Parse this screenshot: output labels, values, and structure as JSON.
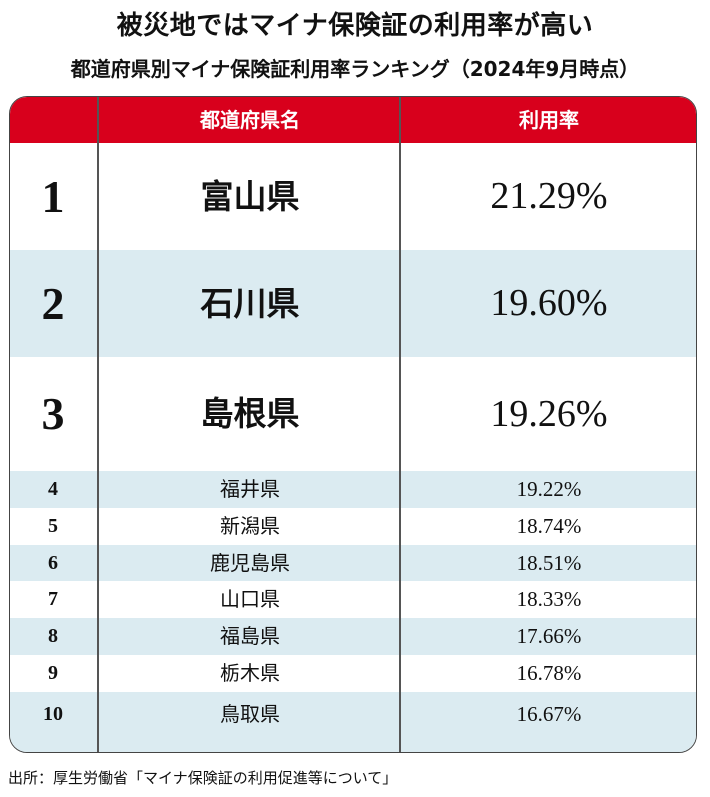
{
  "title": "被災地ではマイナ保険証の利用率が高い",
  "subtitle": "都道府県別マイナ保険証利用率ランキング（2024年9月時点）",
  "table": {
    "headers": {
      "rank": "",
      "prefecture": "都道府県名",
      "rate": "利用率"
    },
    "rows": [
      {
        "rank": "1",
        "prefecture": "富山県",
        "rate": "21.29%"
      },
      {
        "rank": "2",
        "prefecture": "石川県",
        "rate": "19.60%"
      },
      {
        "rank": "3",
        "prefecture": "島根県",
        "rate": "19.26%"
      },
      {
        "rank": "4",
        "prefecture": "福井県",
        "rate": "19.22%"
      },
      {
        "rank": "5",
        "prefecture": "新潟県",
        "rate": "18.74%"
      },
      {
        "rank": "6",
        "prefecture": "鹿児島県",
        "rate": "18.51%"
      },
      {
        "rank": "7",
        "prefecture": "山口県",
        "rate": "18.33%"
      },
      {
        "rank": "8",
        "prefecture": "福島県",
        "rate": "17.66%"
      },
      {
        "rank": "9",
        "prefecture": "栃木県",
        "rate": "16.78%"
      },
      {
        "rank": "10",
        "prefecture": "鳥取県",
        "rate": "16.67%"
      }
    ]
  },
  "source": "出所：厚生労働省「マイナ保険証の利用促進等について」",
  "colors": {
    "header_bg": "#d8001c",
    "alt_row_bg": "#dbebf1",
    "text": "#111111"
  }
}
